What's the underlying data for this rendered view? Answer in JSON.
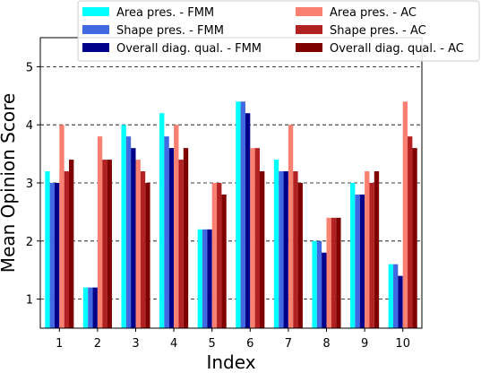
{
  "chart_data": {
    "type": "bar",
    "xlabel": "Index",
    "ylabel": "Mean Opinion Score",
    "categories": [
      "1",
      "2",
      "3",
      "4",
      "5",
      "6",
      "7",
      "8",
      "9",
      "10"
    ],
    "yticks": [
      "1",
      "2",
      "3",
      "4",
      "5"
    ],
    "ylim": [
      0.5,
      5.5
    ],
    "grid": "horizontal dashed",
    "legend_position": "top (above plot), 2 columns",
    "series": [
      {
        "name": "Area pres. - FMM",
        "color": "#00ffff",
        "values": [
          3.2,
          1.2,
          4.0,
          4.2,
          2.2,
          4.4,
          3.4,
          2.0,
          3.0,
          1.6
        ]
      },
      {
        "name": "Shape pres. - FMM",
        "color": "#4169e1",
        "values": [
          3.0,
          1.2,
          3.8,
          3.8,
          2.2,
          4.4,
          3.2,
          2.0,
          2.8,
          1.6
        ]
      },
      {
        "name": "Overall diag. qual. - FMM",
        "color": "#00008b",
        "values": [
          3.0,
          1.2,
          3.6,
          3.6,
          2.2,
          4.2,
          3.2,
          1.8,
          2.8,
          1.4
        ]
      },
      {
        "name": "Area pres. - AC",
        "color": "#fa8072",
        "values": [
          4.0,
          3.8,
          3.4,
          4.0,
          3.0,
          3.6,
          4.0,
          2.4,
          3.2,
          4.4
        ]
      },
      {
        "name": "Shape pres. - AC",
        "color": "#b22222",
        "values": [
          3.2,
          3.4,
          3.2,
          3.4,
          3.0,
          3.6,
          3.2,
          2.4,
          3.0,
          3.8
        ]
      },
      {
        "name": "Overall diag. qual. - AC",
        "color": "#800000",
        "values": [
          3.4,
          3.4,
          3.0,
          3.6,
          2.8,
          3.2,
          3.0,
          2.4,
          3.2,
          3.6
        ]
      }
    ]
  }
}
